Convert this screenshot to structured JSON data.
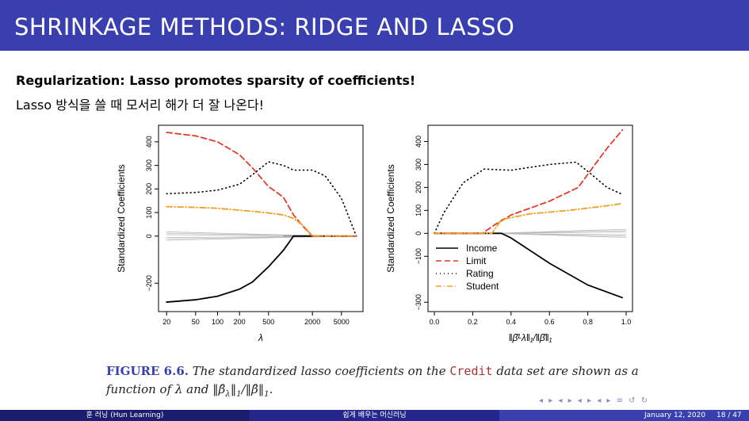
{
  "slide": {
    "title": "SHRINKAGE METHODS: RIDGE AND LASSO",
    "heading": "Regularization: Lasso promotes sparsity of coefficients!",
    "subline": "Lasso 방식을 쓸 때 모서리 해가 더 잘 나온다!"
  },
  "caption": {
    "figure_label": "FIGURE 6.6.",
    "text_a": " The standardized lasso coefficients on the ",
    "code": "Credit",
    "text_b": " data set are shown as a function of λ and ‖β̂",
    "text_c": "‖",
    "text_d": "/‖β̂‖",
    "text_e": "."
  },
  "footer": {
    "left": "훈 러닝 (Hun Learning)",
    "center": "쉽게 배우는 머신러닝",
    "date": "January 12, 2020",
    "page": "18 / 47"
  },
  "nav_symbols": "◂ ▸ ◂ ▸ ◂ ▸ ◂ ▸ ≡ ↺ ↻",
  "chart_data": [
    {
      "type": "line",
      "xlabel": "λ",
      "ylabel": "Standardized Coefficients",
      "x_ticks": [
        "20",
        "50",
        "100",
        "200",
        "500",
        "2000",
        "5000"
      ],
      "y_ticks": [
        "−200",
        "0",
        "100",
        "200",
        "300",
        "400"
      ],
      "ylim": [
        -300,
        450
      ],
      "x_scale": "log",
      "series": [
        {
          "name": "Income",
          "color": "#000000",
          "style": "solid",
          "x": [
            20,
            50,
            100,
            200,
            300,
            500,
            800,
            1100,
            2000,
            8000
          ],
          "y": [
            -280,
            -270,
            -255,
            -225,
            -195,
            -130,
            -60,
            0,
            0,
            0
          ]
        },
        {
          "name": "Limit",
          "color": "#e03c28",
          "style": "dashed",
          "x": [
            20,
            50,
            100,
            200,
            300,
            500,
            800,
            1100,
            1500,
            2000,
            8000
          ],
          "y": [
            440,
            425,
            400,
            345,
            290,
            210,
            165,
            90,
            40,
            0,
            0
          ]
        },
        {
          "name": "Rating",
          "color": "#000000",
          "style": "dotted",
          "x": [
            20,
            50,
            100,
            200,
            300,
            500,
            800,
            1100,
            2000,
            3000,
            5000,
            8000
          ],
          "y": [
            180,
            185,
            195,
            220,
            260,
            315,
            300,
            280,
            280,
            255,
            160,
            0
          ]
        },
        {
          "name": "Student",
          "color": "#f0a020",
          "style": "dashdot",
          "x": [
            20,
            50,
            100,
            200,
            300,
            500,
            800,
            1100,
            1500,
            2000,
            8000
          ],
          "y": [
            125,
            122,
            118,
            110,
            105,
            98,
            90,
            75,
            45,
            0,
            0
          ]
        }
      ]
    },
    {
      "type": "line",
      "xlabel": "‖β̂ᴸλ‖₁/‖β̂‖₁",
      "ylabel": "Standardized Coefficients",
      "x_ticks": [
        "0.0",
        "0.2",
        "0.4",
        "0.6",
        "0.8",
        "1.0"
      ],
      "y_ticks": [
        "−300",
        "−100",
        "0",
        "100",
        "200",
        "300",
        "400"
      ],
      "xlim": [
        0,
        1
      ],
      "ylim": [
        -320,
        450
      ],
      "legend": "bottom-left",
      "series": [
        {
          "name": "Income",
          "color": "#000000",
          "style": "solid",
          "x": [
            0,
            0.35,
            0.4,
            0.6,
            0.8,
            0.98
          ],
          "y": [
            0,
            0,
            -20,
            -130,
            -225,
            -280
          ]
        },
        {
          "name": "Limit",
          "color": "#e03c28",
          "style": "dashed",
          "x": [
            0,
            0.25,
            0.32,
            0.4,
            0.6,
            0.75,
            0.82,
            0.9,
            0.98
          ],
          "y": [
            0,
            0,
            40,
            80,
            140,
            200,
            280,
            370,
            450
          ]
        },
        {
          "name": "Rating",
          "color": "#000000",
          "style": "dotted",
          "x": [
            0,
            0.05,
            0.15,
            0.26,
            0.4,
            0.6,
            0.74,
            0.8,
            0.9,
            0.98
          ],
          "y": [
            0,
            90,
            220,
            280,
            275,
            300,
            310,
            270,
            200,
            170
          ]
        },
        {
          "name": "Student",
          "color": "#f0a020",
          "style": "dashdot",
          "x": [
            0,
            0.3,
            0.35,
            0.5,
            0.7,
            0.9,
            0.98
          ],
          "y": [
            0,
            0,
            60,
            85,
            100,
            120,
            130
          ]
        }
      ]
    }
  ]
}
